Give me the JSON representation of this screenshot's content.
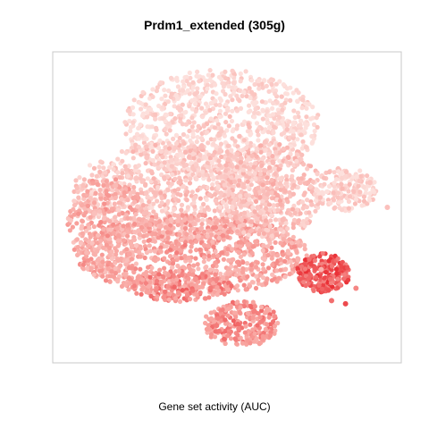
{
  "chart_data": {
    "type": "scatter",
    "title": "Prdm1_extended (305g)",
    "xlabel": "Gene set activity (AUC)",
    "ylabel": "",
    "grid": false,
    "legend": "none",
    "color_scale": {
      "low": "#fde0dc",
      "mid": "#f8a09b",
      "high": "#e8242b"
    },
    "points": [
      {
        "x": 0.12,
        "y": 0.48,
        "auc": 0.25
      },
      {
        "x": 0.18,
        "y": 0.57,
        "auc": 0.3
      },
      {
        "x": 0.22,
        "y": 0.35,
        "auc": 0.45
      },
      {
        "x": 0.27,
        "y": 0.66,
        "auc": 0.2
      },
      {
        "x": 0.31,
        "y": 0.44,
        "auc": 0.35
      },
      {
        "x": 0.36,
        "y": 0.82,
        "auc": 0.15
      },
      {
        "x": 0.41,
        "y": 0.27,
        "auc": 0.55
      },
      {
        "x": 0.45,
        "y": 0.54,
        "auc": 0.25
      },
      {
        "x": 0.47,
        "y": 0.12,
        "auc": 0.65
      },
      {
        "x": 0.52,
        "y": 0.9,
        "auc": 0.1
      },
      {
        "x": 0.56,
        "y": 0.38,
        "auc": 0.4
      },
      {
        "x": 0.61,
        "y": 0.71,
        "auc": 0.2
      },
      {
        "x": 0.66,
        "y": 0.46,
        "auc": 0.3
      },
      {
        "x": 0.71,
        "y": 0.58,
        "auc": 0.25
      },
      {
        "x": 0.77,
        "y": 0.3,
        "auc": 0.35
      },
      {
        "x": 0.8,
        "y": 0.2,
        "auc": 0.7
      },
      {
        "x": 0.84,
        "y": 0.19,
        "auc": 0.85
      },
      {
        "x": 0.87,
        "y": 0.24,
        "auc": 0.6
      },
      {
        "x": 0.91,
        "y": 0.58,
        "auc": 0.2
      },
      {
        "x": 0.96,
        "y": 0.5,
        "auc": 0.25
      }
    ]
  }
}
